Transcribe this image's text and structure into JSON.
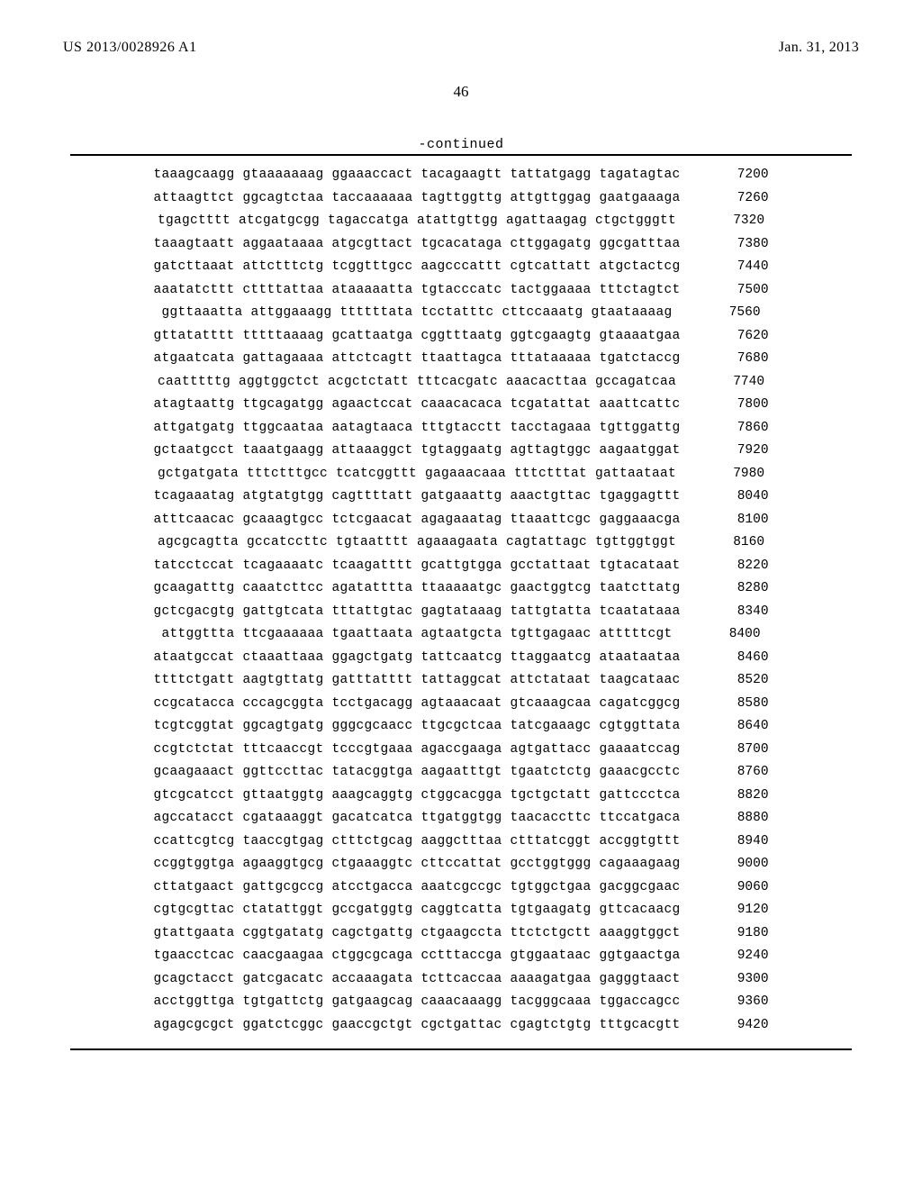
{
  "header": {
    "pub_number": "US 2013/0028926 A1",
    "pub_date": "Jan. 31, 2013",
    "page_number": "46",
    "continued_label": "-continued"
  },
  "sequence": {
    "font_family": "Courier New",
    "font_size_pt": 11,
    "text_color": "#000000",
    "background_color": "#ffffff",
    "border_color": "#000000",
    "lines": [
      {
        "groups": [
          "taaagcaagg",
          "gtaaaaaaag",
          "ggaaaccact",
          "tacagaagtt",
          "tattatgagg",
          "tagatagtac"
        ],
        "pos": 7200
      },
      {
        "groups": [
          "attaagttct",
          "ggcagtctaa",
          "taccaaaaaa",
          "tagttggttg",
          "attgttggag",
          "gaatgaaaga"
        ],
        "pos": 7260
      },
      {
        "groups": [
          "tgagctttt",
          "atcgatgcgg",
          "tagaccatga",
          "atattgttgg",
          "agattaagag",
          "ctgctgggtt"
        ],
        "pos": 7320
      },
      {
        "groups": [
          "taaagtaatt",
          "aggaataaaa",
          "atgcgttact",
          "tgcacataga",
          "cttggagatg",
          "ggcgatttaa"
        ],
        "pos": 7380
      },
      {
        "groups": [
          "gatcttaaat",
          "attctttctg",
          "tcggtttgcc",
          "aagcccattt",
          "cgtcattatt",
          "atgctactcg"
        ],
        "pos": 7440
      },
      {
        "groups": [
          "aaatatcttt",
          "cttttattaa",
          "ataaaaatta",
          "tgtacccatc",
          "tactggaaaa",
          "tttctagtct"
        ],
        "pos": 7500
      },
      {
        "groups": [
          "ggttaaatta",
          "attggaaagg",
          "ttttttata",
          "tcctatttc",
          "cttccaaatg",
          "gtaataaaag"
        ],
        "pos": 7560
      },
      {
        "groups": [
          "gttatatttt",
          "tttttaaaag",
          "gcattaatga",
          "cggtttaatg",
          "ggtcgaagtg",
          "gtaaaatgaa"
        ],
        "pos": 7620
      },
      {
        "groups": [
          "atgaatcata",
          "gattagaaaa",
          "attctcagtt",
          "ttaattagca",
          "tttataaaaa",
          "tgatctaccg"
        ],
        "pos": 7680
      },
      {
        "groups": [
          "caatttttg",
          "aggtggctct",
          "acgctctatt",
          "tttcacgatc",
          "aaacacttaa",
          "gccagatcaa"
        ],
        "pos": 7740
      },
      {
        "groups": [
          "atagtaattg",
          "ttgcagatgg",
          "agaactccat",
          "caaacacaca",
          "tcgatattat",
          "aaattcattc"
        ],
        "pos": 7800
      },
      {
        "groups": [
          "attgatgatg",
          "ttggcaataa",
          "aatagtaaca",
          "tttgtacctt",
          "tacctagaaa",
          "tgttggattg"
        ],
        "pos": 7860
      },
      {
        "groups": [
          "gctaatgcct",
          "taaatgaagg",
          "attaaaggct",
          "tgtaggaatg",
          "agttagtggc",
          "aagaatggat"
        ],
        "pos": 7920
      },
      {
        "groups": [
          "gctgatgata",
          "tttctttgcc",
          "tcatcggttt",
          "gagaaacaaa",
          "tttctttat",
          "gattaataat"
        ],
        "pos": 7980
      },
      {
        "groups": [
          "tcagaaatag",
          "atgtatgtgg",
          "cagttttatt",
          "gatgaaattg",
          "aaactgttac",
          "tgaggagttt"
        ],
        "pos": 8040
      },
      {
        "groups": [
          "atttcaacac",
          "gcaaagtgcc",
          "tctcgaacat",
          "agagaaatag",
          "ttaaattcgc",
          "gaggaaacga"
        ],
        "pos": 8100
      },
      {
        "groups": [
          "agcgcagtta",
          "gccatccttc",
          "tgtaatttt",
          "agaaagaata",
          "cagtattagc",
          "tgttggtggt"
        ],
        "pos": 8160
      },
      {
        "groups": [
          "tatcctccat",
          "tcagaaaatc",
          "tcaagatttt",
          "gcattgtgga",
          "gcctattaat",
          "tgtacataat"
        ],
        "pos": 8220
      },
      {
        "groups": [
          "gcaagatttg",
          "caaatcttcc",
          "agatatttta",
          "ttaaaaatgc",
          "gaactggtcg",
          "taatcttatg"
        ],
        "pos": 8280
      },
      {
        "groups": [
          "gctcgacgtg",
          "gattgtcata",
          "tttattgtac",
          "gagtataaag",
          "tattgtatta",
          "tcaatataaa"
        ],
        "pos": 8340
      },
      {
        "groups": [
          "attggttta",
          "ttcgaaaaaa",
          "tgaattaata",
          "agtaatgcta",
          "tgttgagaac",
          "atttttcgt"
        ],
        "pos": 8400
      },
      {
        "groups": [
          "ataatgccat",
          "ctaaattaaa",
          "ggagctgatg",
          "tattcaatcg",
          "ttaggaatcg",
          "ataataataa"
        ],
        "pos": 8460
      },
      {
        "groups": [
          "ttttctgatt",
          "aagtgttatg",
          "gatttatttt",
          "tattaggcat",
          "attctataat",
          "taagcataac"
        ],
        "pos": 8520
      },
      {
        "groups": [
          "ccgcatacca",
          "cccagcggta",
          "tcctgacagg",
          "agtaaacaat",
          "gtcaaagcaa",
          "cagatcggcg"
        ],
        "pos": 8580
      },
      {
        "groups": [
          "tcgtcggtat",
          "ggcagtgatg",
          "gggcgcaacc",
          "ttgcgctcaa",
          "tatcgaaagc",
          "cgtggttata"
        ],
        "pos": 8640
      },
      {
        "groups": [
          "ccgtctctat",
          "tttcaaccgt",
          "tcccgtgaaa",
          "agaccgaaga",
          "agtgattacc",
          "gaaaatccag"
        ],
        "pos": 8700
      },
      {
        "groups": [
          "gcaagaaact",
          "ggttccttac",
          "tatacggtga",
          "aagaatttgt",
          "tgaatctctg",
          "gaaacgcctc"
        ],
        "pos": 8760
      },
      {
        "groups": [
          "gtcgcatcct",
          "gttaatggtg",
          "aaagcaggtg",
          "ctggcacgga",
          "tgctgctatt",
          "gattccctca"
        ],
        "pos": 8820
      },
      {
        "groups": [
          "agccatacct",
          "cgataaaggt",
          "gacatcatca",
          "ttgatggtgg",
          "taacaccttc",
          "ttccatgaca"
        ],
        "pos": 8880
      },
      {
        "groups": [
          "ccattcgtcg",
          "taaccgtgag",
          "ctttctgcag",
          "aaggctttaa",
          "ctttatcggt",
          "accggtgttt"
        ],
        "pos": 8940
      },
      {
        "groups": [
          "ccggtggtga",
          "agaaggtgcg",
          "ctgaaaggtc",
          "cttccattat",
          "gcctggtggg",
          "cagaaagaag"
        ],
        "pos": 9000
      },
      {
        "groups": [
          "cttatgaact",
          "gattgcgccg",
          "atcctgacca",
          "aaatcgccgc",
          "tgtggctgaa",
          "gacggcgaac"
        ],
        "pos": 9060
      },
      {
        "groups": [
          "cgtgcgttac",
          "ctatattggt",
          "gccgatggtg",
          "caggtcatta",
          "tgtgaagatg",
          "gttcacaacg"
        ],
        "pos": 9120
      },
      {
        "groups": [
          "gtattgaata",
          "cggtgatatg",
          "cagctgattg",
          "ctgaagccta",
          "ttctctgctt",
          "aaaggtggct"
        ],
        "pos": 9180
      },
      {
        "groups": [
          "tgaacctcac",
          "caacgaagaa",
          "ctggcgcaga",
          "cctttaccga",
          "gtggaataac",
          "ggtgaactga"
        ],
        "pos": 9240
      },
      {
        "groups": [
          "gcagctacct",
          "gatcgacatc",
          "accaaagata",
          "tcttcaccaa",
          "aaaagatgaa",
          "gagggtaact"
        ],
        "pos": 9300
      },
      {
        "groups": [
          "acctggttga",
          "tgtgattctg",
          "gatgaagcag",
          "caaacaaagg",
          "tacgggcaaa",
          "tggaccagcc"
        ],
        "pos": 9360
      },
      {
        "groups": [
          "agagcgcgct",
          "ggatctcggc",
          "gaaccgctgt",
          "cgctgattac",
          "cgagtctgtg",
          "tttgcacgtt"
        ],
        "pos": 9420
      }
    ]
  }
}
